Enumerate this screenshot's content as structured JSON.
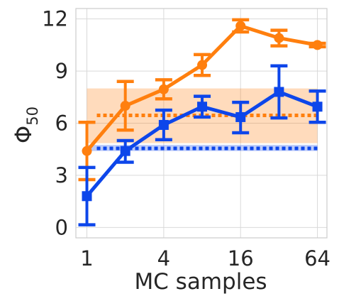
{
  "chart_data": {
    "type": "line",
    "xlabel": "MC samples",
    "ylabel": "Φ",
    "ylabel_subscript": "50",
    "x_scale": "log2",
    "xlim": [
      0.82,
      76
    ],
    "ylim": [
      -0.6,
      12.6
    ],
    "x_ticks": [
      1,
      4,
      16,
      64
    ],
    "x_tick_labels": [
      "1",
      "4",
      "16",
      "64"
    ],
    "y_ticks": [
      0,
      3,
      6,
      9,
      12
    ],
    "y_tick_labels": [
      "0",
      "3",
      "6",
      "9",
      "12"
    ],
    "grid": true,
    "x": [
      1,
      2,
      4,
      8,
      16,
      32,
      64
    ],
    "series": [
      {
        "color": "#ff7f0e",
        "marker": "circle",
        "values": [
          4.4,
          7.0,
          7.95,
          9.35,
          11.6,
          10.9,
          10.5
        ],
        "error_low": [
          2.75,
          5.6,
          7.4,
          8.75,
          11.25,
          10.45,
          10.4
        ],
        "error_high": [
          6.05,
          8.4,
          8.5,
          9.95,
          11.95,
          11.35,
          10.6
        ],
        "baseline": {
          "value": 6.45,
          "band": [
            4.85,
            8.0
          ],
          "style": "dotted"
        }
      },
      {
        "color": "#0d46ea",
        "marker": "square",
        "values": [
          1.8,
          4.4,
          5.9,
          6.95,
          6.35,
          7.8,
          6.95
        ],
        "error_low": [
          0.15,
          3.75,
          5.05,
          6.35,
          5.45,
          6.3,
          6.05
        ],
        "error_high": [
          3.45,
          5.0,
          6.75,
          7.55,
          7.2,
          9.3,
          7.85
        ],
        "baseline": {
          "value": 4.55,
          "band": [
            4.4,
            4.75
          ],
          "style": "dotted"
        }
      }
    ]
  }
}
